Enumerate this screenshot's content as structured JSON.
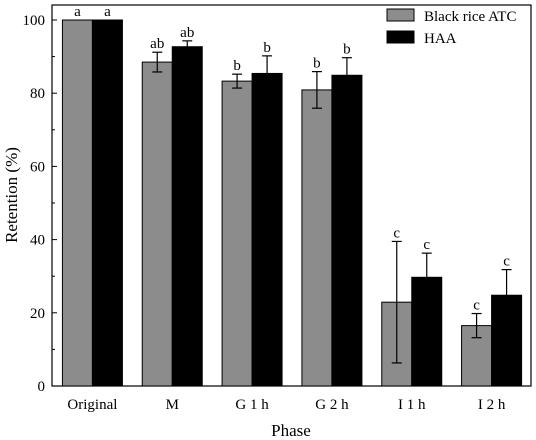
{
  "chart_data": {
    "type": "bar",
    "xlabel": "Phase",
    "ylabel": "Retention (%)",
    "ylim": [
      0,
      100
    ],
    "yticks": [
      0,
      20,
      40,
      60,
      80,
      100
    ],
    "categories": [
      "Original",
      "M",
      "G 1 h",
      "G 2 h",
      "I 1 h",
      "I 2 h"
    ],
    "series": [
      {
        "name": "Black rice ATC",
        "color": "#8c8c8c",
        "values": [
          100,
          88.5,
          83.3,
          80.9,
          22.9,
          16.5
        ],
        "errors": [
          0,
          2.7,
          1.9,
          5.0,
          16.6,
          3.3
        ],
        "labels": [
          "a",
          "ab",
          "b",
          "b",
          "c",
          "c"
        ]
      },
      {
        "name": "HAA",
        "color": "#000000",
        "values": [
          100,
          92.7,
          85.4,
          84.9,
          29.7,
          24.8
        ],
        "errors": [
          0,
          1.6,
          4.8,
          4.8,
          6.6,
          7.0
        ],
        "labels": [
          "a",
          "ab",
          "b",
          "b",
          "c",
          "c"
        ]
      }
    ],
    "legend": "top-right",
    "grid": false
  }
}
